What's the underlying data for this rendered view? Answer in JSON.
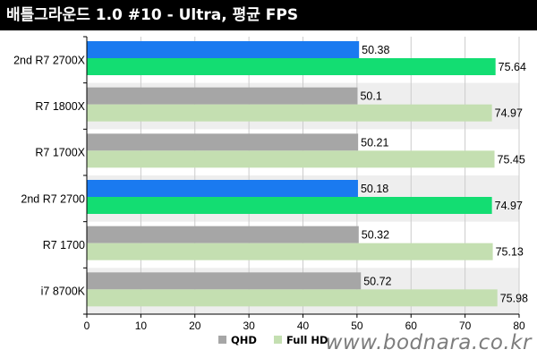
{
  "title": "배틀그라운드 1.0 #10 - Ultra, 평균 FPS",
  "watermark": "www.bodnara.co.kr",
  "colors": {
    "qhd_default": "#a6a6a6",
    "fullhd_default": "#c4dfb1",
    "qhd_highlight": "#1a7af0",
    "fullhd_highlight": "#13dd72",
    "band": "#eeeeee",
    "grid": "#cccccc",
    "axis": "#000000"
  },
  "chart_data": {
    "type": "bar",
    "orientation": "horizontal",
    "categories": [
      "2nd R7 2700X",
      "R7 1800X",
      "R7 1700X",
      "2nd R7 2700",
      "R7 1700",
      "i7 8700K"
    ],
    "highlighted": [
      "2nd R7 2700X",
      "2nd R7 2700"
    ],
    "series": [
      {
        "name": "QHD",
        "values": [
          50.38,
          50.1,
          50.21,
          50.18,
          50.32,
          50.72
        ]
      },
      {
        "name": "Full HD",
        "values": [
          75.64,
          74.97,
          75.45,
          74.97,
          75.13,
          75.98
        ]
      }
    ],
    "data_labels": [
      [
        "50.38",
        "50.1",
        "50.21",
        "50.18",
        "50.32",
        "50.72"
      ],
      [
        "75.64",
        "74.97",
        "75.45",
        "74.97",
        "75.13",
        "75.98"
      ]
    ],
    "xlim": [
      0,
      80
    ],
    "xticks": [
      "0",
      "10",
      "20",
      "30",
      "40",
      "50",
      "60",
      "70",
      "80"
    ],
    "grid": true,
    "legend_position": "bottom-center"
  }
}
